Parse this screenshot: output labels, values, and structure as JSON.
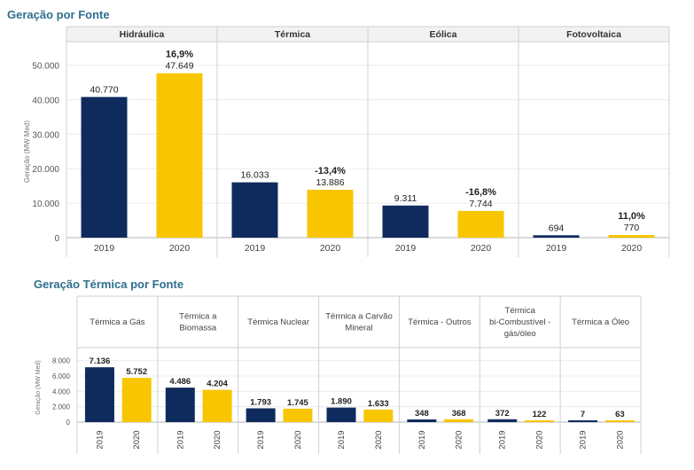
{
  "chart_data": [
    {
      "type": "bar",
      "title": "Geração por Fonte",
      "ylabel": "Geração (MW Med)",
      "ylim": [
        0,
        55000
      ],
      "yticks": [
        "50.000",
        "40.000",
        "30.000",
        "20.000",
        "10.000",
        "0"
      ],
      "ytick_values": [
        50000,
        40000,
        30000,
        20000,
        10000,
        0
      ],
      "groups": [
        {
          "label": "Hidráulica",
          "change": "16,9%",
          "bars": [
            {
              "year": "2019",
              "value": 40770,
              "label": "40.770"
            },
            {
              "year": "2020",
              "value": 47649,
              "label": "47.649"
            }
          ]
        },
        {
          "label": "Térmica",
          "change": "-13,4%",
          "bars": [
            {
              "year": "2019",
              "value": 16033,
              "label": "16.033"
            },
            {
              "year": "2020",
              "value": 13886,
              "label": "13.886"
            }
          ]
        },
        {
          "label": "Eólica",
          "change": "-16,8%",
          "bars": [
            {
              "year": "2019",
              "value": 9311,
              "label": "9.311"
            },
            {
              "year": "2020",
              "value": 7744,
              "label": "7.744"
            }
          ]
        },
        {
          "label": "Fotovoltaica",
          "change": "11,0%",
          "bars": [
            {
              "year": "2019",
              "value": 694,
              "label": "694"
            },
            {
              "year": "2020",
              "value": 770,
              "label": "770"
            }
          ]
        }
      ],
      "colors": {
        "2019": "#0f2b5e",
        "2020": "#f7c600"
      }
    },
    {
      "type": "bar",
      "title": "Geração Térmica por Fonte",
      "ylabel": "Geração (MW Med)",
      "ylim": [
        0,
        9000
      ],
      "yticks": [
        "8.000",
        "6.000",
        "4.000",
        "2.000",
        "0"
      ],
      "ytick_values": [
        8000,
        6000,
        4000,
        2000,
        0
      ],
      "groups": [
        {
          "label_lines": [
            "Térmica a Gás"
          ],
          "bars": [
            {
              "year": "2019",
              "value": 7136,
              "label": "7.136"
            },
            {
              "year": "2020",
              "value": 5752,
              "label": "5.752"
            }
          ]
        },
        {
          "label_lines": [
            "Térmica a",
            "Biomassa"
          ],
          "bars": [
            {
              "year": "2019",
              "value": 4486,
              "label": "4.486"
            },
            {
              "year": "2020",
              "value": 4204,
              "label": "4.204"
            }
          ]
        },
        {
          "label_lines": [
            "Térmica Nuclear"
          ],
          "bars": [
            {
              "year": "2019",
              "value": 1793,
              "label": "1.793"
            },
            {
              "year": "2020",
              "value": 1745,
              "label": "1.745"
            }
          ]
        },
        {
          "label_lines": [
            "Térmica a Carvão",
            "Mineral"
          ],
          "bars": [
            {
              "year": "2019",
              "value": 1890,
              "label": "1.890"
            },
            {
              "year": "2020",
              "value": 1633,
              "label": "1.633"
            }
          ]
        },
        {
          "label_lines": [
            "Térmica - Outros"
          ],
          "bars": [
            {
              "year": "2019",
              "value": 348,
              "label": "348"
            },
            {
              "year": "2020",
              "value": 368,
              "label": "368"
            }
          ]
        },
        {
          "label_lines": [
            "Térmica",
            "bi-Combustível -",
            "gás/óleo"
          ],
          "bars": [
            {
              "year": "2019",
              "value": 372,
              "label": "372"
            },
            {
              "year": "2020",
              "value": 122,
              "label": "122"
            }
          ]
        },
        {
          "label_lines": [
            "Térmica a Óleo"
          ],
          "bars": [
            {
              "year": "2019",
              "value": 7,
              "label": "7"
            },
            {
              "year": "2020",
              "value": 63,
              "label": "63"
            }
          ]
        }
      ],
      "colors": {
        "2019": "#0f2b5e",
        "2020": "#f7c600"
      }
    }
  ]
}
